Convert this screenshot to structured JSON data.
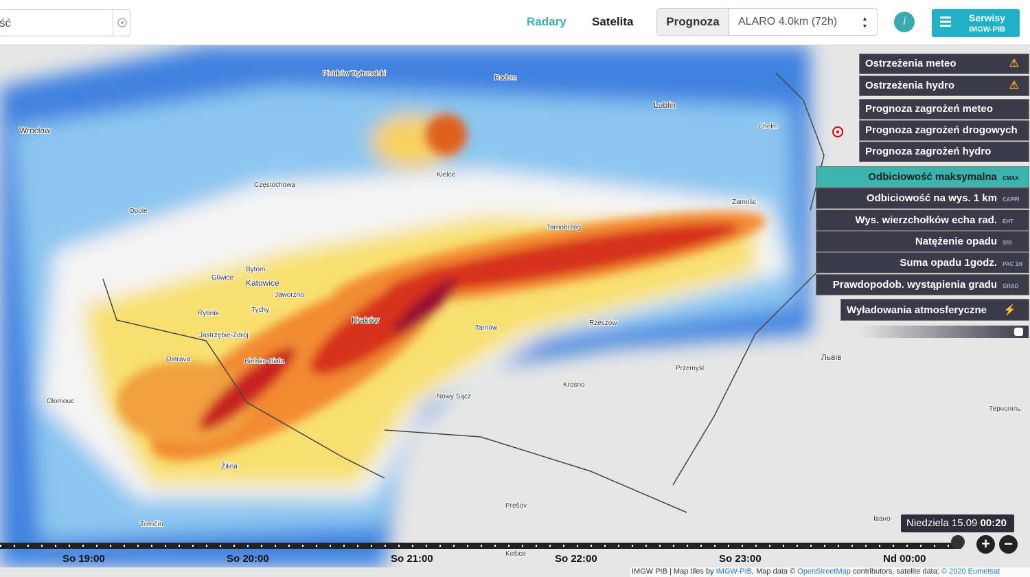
{
  "header": {
    "search": "ść",
    "tabs": [
      "Radary",
      "Satelita"
    ],
    "forecast_label": "Prognoza",
    "model_select": "ALARO 4.0km (72h)",
    "info": "i",
    "services_button": [
      "Serwisy",
      "IMGW-PIB"
    ]
  },
  "warnings_menu": [
    "Ostrzeżenia meteo",
    "Ostrzeżenia hydro",
    "Prognoza zagrożeń meteo",
    "Prognoza zagrożeń drogowych",
    "Prognoza zagrożeń hydro"
  ],
  "layers": [
    {
      "name": "Odbiciowość maksymalna",
      "code": "CMAX"
    },
    {
      "name": "Odbiciowość na wys. 1 km",
      "code": "CAPPI"
    },
    {
      "name": "Wys. wierzchołków echa rad.",
      "code": "EHT"
    },
    {
      "name": "Natężenie opadu",
      "code": "SRI"
    },
    {
      "name": "Suma opadu 1godz.",
      "code": "PAC 1H"
    },
    {
      "name": "Prawdopodob. wystąpienia gradu",
      "code": "GRAD"
    }
  ],
  "lightning": "Wyładowania atmosferyczne",
  "map_labels": [
    "Wrocław",
    "Opole",
    "Częstochowa",
    "Katowice",
    "Bytom",
    "Gliwice",
    "Jaworzno",
    "Tychy",
    "Rybnik",
    "Jastrzębie-Zdrój",
    "Ostrava",
    "Bielsko-Biała",
    "Olomouc",
    "Kraków",
    "Tarnów",
    "Kielce",
    "Radom",
    "Lublin",
    "Tarnobrzeg",
    "Zamość",
    "Rzeszów",
    "Przemyśl",
    "Krosno",
    "Nowy Sącz",
    "Žilina",
    "Trenčín",
    "Prešov",
    "Košice",
    "Львів",
    "Тернопіль",
    "Івано-",
    "Chełm",
    "Piotrków Trybunalski"
  ],
  "timeline": {
    "labels": [
      "So 19:00",
      "So 20:00",
      "So 21:00",
      "So 22:00",
      "So 23:00",
      "Nd 00:00"
    ],
    "current_day": "Niedziela 15.09",
    "current_time": "00:20",
    "zoom_in": "+",
    "zoom_out": "−"
  },
  "footer": {
    "text1": "IMGW PIB | Map tiles by",
    "link1": "IMGW-PIB",
    "text2": ", Map data ©",
    "link2": "OpenStreetMap",
    "text3": "contributors, satelite data:",
    "link3": "© 2020 Eumetsat"
  }
}
